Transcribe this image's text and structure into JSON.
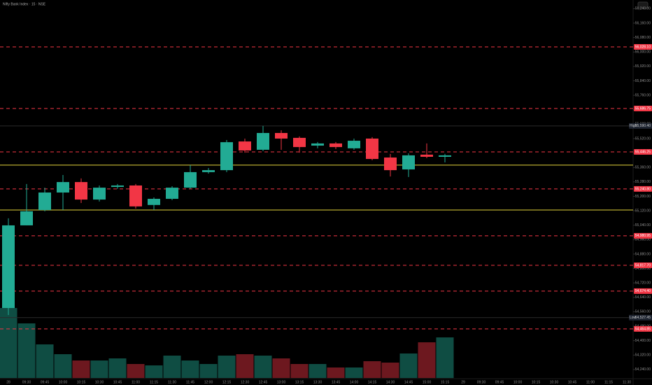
{
  "chart_data": {
    "type": "candlestick",
    "title": "Nifty Bank Index · 15 · NSE",
    "categories": [
      "28",
      "09:30",
      "09:45",
      "10:00",
      "10:15",
      "10:30",
      "10:45",
      "11:00",
      "11:15",
      "11:30",
      "11:45",
      "12:00",
      "12:15",
      "12:30",
      "12:45",
      "13:00",
      "13:15",
      "13:30",
      "13:45",
      "14:00",
      "14:15",
      "14:30",
      "14:45",
      "15:00",
      "15:15",
      "29",
      "09:30",
      "09:45",
      "10:00",
      "10:15",
      "10:30",
      "10:45",
      "11:00",
      "11:15",
      "11:30"
    ],
    "open": [
      54581,
      55039,
      55124,
      55221,
      55279,
      55182,
      55252,
      55260,
      55152,
      55186,
      55248,
      55334,
      55345,
      55504,
      55458,
      55551,
      55524,
      55481,
      55493,
      55466,
      55520,
      55415,
      55349,
      55431,
      55419,
      null,
      null,
      null,
      null,
      null,
      null,
      null,
      null,
      null,
      null
    ],
    "high": [
      55078,
      55268,
      55248,
      55318,
      55299,
      55260,
      55268,
      55268,
      55194,
      55256,
      55373,
      55357,
      55512,
      55520,
      55590,
      55566,
      55532,
      55501,
      55501,
      55520,
      55528,
      55435,
      55438,
      55493,
      55435,
      null,
      null,
      null,
      null,
      null,
      null,
      null,
      null,
      null,
      null
    ],
    "low": [
      54542,
      55039,
      55117,
      55124,
      55163,
      55171,
      55241,
      55132,
      55124,
      55179,
      55241,
      55326,
      55334,
      55442,
      55450,
      55458,
      55442,
      55466,
      55462,
      55458,
      55400,
      55310,
      55307,
      55411,
      55388,
      null,
      null,
      null,
      null,
      null,
      null,
      null,
      null,
      null,
      null
    ],
    "close": [
      55039,
      55117,
      55221,
      55279,
      55182,
      55248,
      55260,
      55144,
      55186,
      55248,
      55334,
      55345,
      55500,
      55454,
      55551,
      55520,
      55473,
      55493,
      55473,
      55508,
      55407,
      55345,
      55427,
      55419,
      55427,
      null,
      null,
      null,
      null,
      null,
      null,
      null,
      null,
      null,
      null
    ],
    "volume": [
      100,
      78,
      48,
      34,
      25,
      25,
      28,
      20,
      18,
      32,
      25,
      20,
      32,
      34,
      32,
      28,
      20,
      20,
      15,
      15,
      24,
      22,
      35,
      51,
      58,
      null,
      null,
      null,
      null,
      null,
      null,
      null,
      null,
      null,
      null
    ],
    "up_color": "#22ab94",
    "down_color": "#f23645",
    "ylim": [
      54193,
      56257
    ],
    "yticks": [
      {
        "value": 54240,
        "label": "54,240.00"
      },
      {
        "value": 54320,
        "label": "54,320.00"
      },
      {
        "value": 54400,
        "label": "54,400.00"
      },
      {
        "value": 54480,
        "label": "54,480.00"
      },
      {
        "value": 54560,
        "label": "54,560.00"
      },
      {
        "value": 54640,
        "label": "54,640.00"
      },
      {
        "value": 54720,
        "label": "54,720.00"
      },
      {
        "value": 54800,
        "label": "54,800.00"
      },
      {
        "value": 54880,
        "label": "54,880.00"
      },
      {
        "value": 54960,
        "label": "54,960.00"
      },
      {
        "value": 55040,
        "label": "55,040.00"
      },
      {
        "value": 55120,
        "label": "55,120.00"
      },
      {
        "value": 55200,
        "label": "55,200.00"
      },
      {
        "value": 55280,
        "label": "55,280.00"
      },
      {
        "value": 55360,
        "label": "55,360.00"
      },
      {
        "value": 55440,
        "label": "55,440.00"
      },
      {
        "value": 55520,
        "label": "55,520.00"
      },
      {
        "value": 55600,
        "label": "55,600.00"
      },
      {
        "value": 55680,
        "label": "55,680.00"
      },
      {
        "value": 55760,
        "label": "55,760.00"
      },
      {
        "value": 55840,
        "label": "55,840.00"
      },
      {
        "value": 55920,
        "label": "55,920.00"
      },
      {
        "value": 56000,
        "label": "56,000.00"
      },
      {
        "value": 56080,
        "label": "56,080.00"
      },
      {
        "value": 56160,
        "label": "56,160.00"
      },
      {
        "value": 56240,
        "label": "56,240.00"
      }
    ],
    "levels": [
      {
        "value": 56028.1,
        "label": "56,028.10"
      },
      {
        "value": 55686.75,
        "label": "55,686.75"
      },
      {
        "value": 55446.25,
        "label": "55,446.25"
      },
      {
        "value": 55240.8,
        "label": "55,240.80"
      },
      {
        "value": 54980.95,
        "label": "54,980.95"
      },
      {
        "value": 54817.7,
        "label": "54,817.70"
      },
      {
        "value": 54674.4,
        "label": "54,674.40"
      },
      {
        "value": 54464.85,
        "label": "54,464.85"
      }
    ],
    "level_color": "#f23645",
    "support_lines": [
      55373,
      55124
    ],
    "support_color": "#e2d33a",
    "high_mark": {
      "name": "High",
      "value": 55590.4,
      "label": "55,590.40"
    },
    "low_mark": {
      "name": "Low",
      "value": 54527.45,
      "label": "54,527.45"
    }
  }
}
